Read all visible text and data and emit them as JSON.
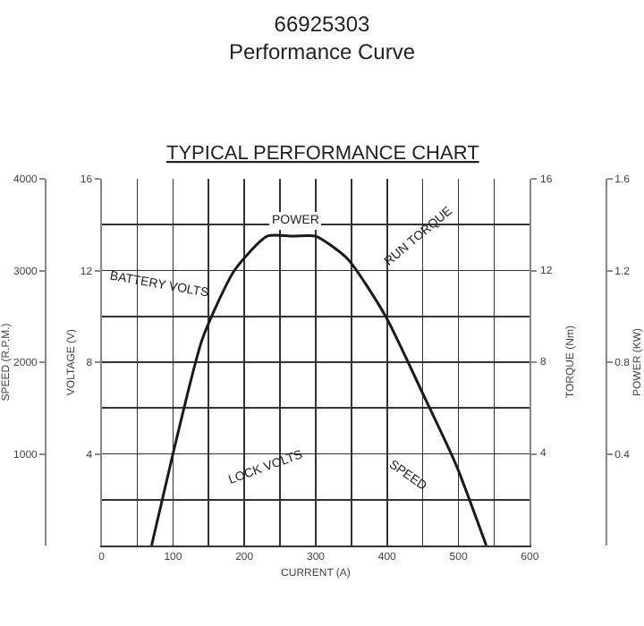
{
  "chart_data": {
    "type": "line",
    "title": "66925303",
    "subtitle": "Performance Curve",
    "xlabel": "CURRENT (A)",
    "ylabel": "SPEED (R.P.M.)",
    "y2label": "VOLTAGE (V)",
    "y3label": "POWER (KW)",
    "xlim": [
      0,
      600
    ],
    "xticks": [
      0,
      100,
      200,
      300,
      400,
      500,
      600
    ],
    "ylim": [
      0,
      4000
    ],
    "yticks": [
      1000,
      2000,
      3000,
      4000
    ],
    "y2lim": [
      0,
      16
    ],
    "y2ticks": [
      4,
      8,
      12,
      16
    ],
    "y3lim": [
      0,
      1.6
    ],
    "y3ticks": [
      0.4,
      0.8,
      1.2,
      1.6
    ],
    "x": [
      70,
      100,
      141,
      186,
      232,
      270,
      300,
      345,
      398,
      452,
      497,
      539
    ],
    "series": [
      {
        "color": "#1a1a1a",
        "axis": "y3",
        "values": [
          0,
          0.4,
          0.9,
          1.2,
          1.35,
          1.35,
          1.35,
          1.25,
          1.0,
          0.65,
          0.35,
          0
        ]
      }
    ],
    "annotations": [
      "TYPICAL PERFORMANCE CHART",
      "TORQUE (Nm)",
      "BATTERY VOLTS",
      "RUN TORQUE",
      "LOCK VOLTS",
      "SPEED",
      "POWER",
      "4",
      "8",
      "12",
      "16"
    ],
    "grid": true,
    "marker": "none",
    "line_style": "solid"
  }
}
